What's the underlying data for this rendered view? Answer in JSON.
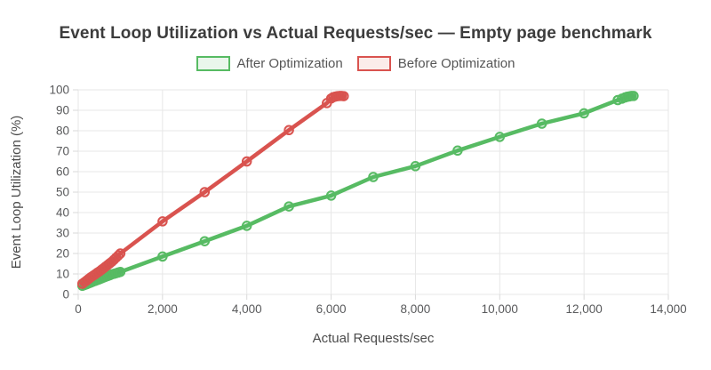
{
  "header": {
    "title": "Event Loop Utilization vs Actual Requests/sec — Empty page benchmark"
  },
  "colors": {
    "background": "#ffffff",
    "title_text": "#3c3c3c",
    "legend_text": "#565656",
    "tick_label_text": "#58595b",
    "axis_title_text": "#4b4b4b",
    "gridline": "#e7e7e7",
    "axis_tick": "#d9d9d9",
    "after_line": "#57bb63",
    "after_fill": "#eaf6ec",
    "before_line": "#d9534f",
    "before_fill": "#fbecea"
  },
  "chart_data": {
    "type": "line",
    "title": "Event Loop Utilization vs Actual Requests/sec — Empty page benchmark",
    "xlabel": "Actual Requests/sec",
    "ylabel": "Event Loop Utilization (%)",
    "xlim": [
      0,
      14000
    ],
    "ylim": [
      0,
      100
    ],
    "grid": true,
    "legend_position": "top",
    "marker_style": "open-circle",
    "x_tick_values": [
      0,
      2000,
      4000,
      6000,
      8000,
      10000,
      12000,
      14000
    ],
    "x_tick_labels": [
      "0",
      "2,000",
      "4,000",
      "6,000",
      "8,000",
      "10,000",
      "12,000",
      "14,000"
    ],
    "y_tick_values": [
      0,
      10,
      20,
      30,
      40,
      50,
      60,
      70,
      80,
      90,
      100
    ],
    "y_tick_labels": [
      "0",
      "10",
      "20",
      "30",
      "40",
      "50",
      "60",
      "70",
      "80",
      "90",
      "100"
    ],
    "series": [
      {
        "name": "After Optimization",
        "color": "#57bb63",
        "fill": "#eaf6ec",
        "points": [
          [
            100,
            4.2
          ],
          [
            150,
            4.6
          ],
          [
            200,
            5.0
          ],
          [
            250,
            5.4
          ],
          [
            300,
            5.8
          ],
          [
            350,
            6.2
          ],
          [
            400,
            6.6
          ],
          [
            450,
            7.0
          ],
          [
            500,
            7.4
          ],
          [
            550,
            7.8
          ],
          [
            600,
            8.2
          ],
          [
            650,
            8.6
          ],
          [
            700,
            9.0
          ],
          [
            750,
            9.4
          ],
          [
            800,
            9.8
          ],
          [
            850,
            10.1
          ],
          [
            900,
            10.4
          ],
          [
            950,
            10.7
          ],
          [
            1000,
            11.0
          ],
          [
            2000,
            18.5
          ],
          [
            3000,
            26.0
          ],
          [
            4000,
            33.5
          ],
          [
            5000,
            43.0
          ],
          [
            6000,
            48.3
          ],
          [
            7000,
            57.4
          ],
          [
            8000,
            62.7
          ],
          [
            9000,
            70.3
          ],
          [
            10000,
            77.0
          ],
          [
            11000,
            83.5
          ],
          [
            12000,
            88.5
          ],
          [
            12800,
            95.0
          ],
          [
            12900,
            95.7
          ],
          [
            12975,
            96.3
          ],
          [
            13025,
            96.6
          ],
          [
            13075,
            96.8
          ],
          [
            13125,
            97.0
          ],
          [
            13175,
            97.0
          ]
        ]
      },
      {
        "name": "Before Optimization",
        "color": "#d9534f",
        "fill": "#fbecea",
        "points": [
          [
            100,
            5.2
          ],
          [
            150,
            6.0
          ],
          [
            200,
            6.8
          ],
          [
            250,
            7.6
          ],
          [
            300,
            8.4
          ],
          [
            350,
            9.1
          ],
          [
            400,
            9.8
          ],
          [
            450,
            10.5
          ],
          [
            500,
            11.2
          ],
          [
            550,
            12.0
          ],
          [
            600,
            12.8
          ],
          [
            650,
            13.6
          ],
          [
            700,
            14.4
          ],
          [
            750,
            15.2
          ],
          [
            800,
            16.0
          ],
          [
            850,
            17.0
          ],
          [
            900,
            18.0
          ],
          [
            950,
            19.0
          ],
          [
            1000,
            20.0
          ],
          [
            2000,
            35.7
          ],
          [
            3000,
            50.0
          ],
          [
            4000,
            65.0
          ],
          [
            5000,
            80.3
          ],
          [
            5900,
            93.5
          ],
          [
            6000,
            95.8
          ],
          [
            6050,
            96.4
          ],
          [
            6100,
            96.7
          ],
          [
            6150,
            96.9
          ],
          [
            6200,
            97.0
          ],
          [
            6250,
            97.0
          ],
          [
            6300,
            96.9
          ]
        ]
      }
    ]
  }
}
